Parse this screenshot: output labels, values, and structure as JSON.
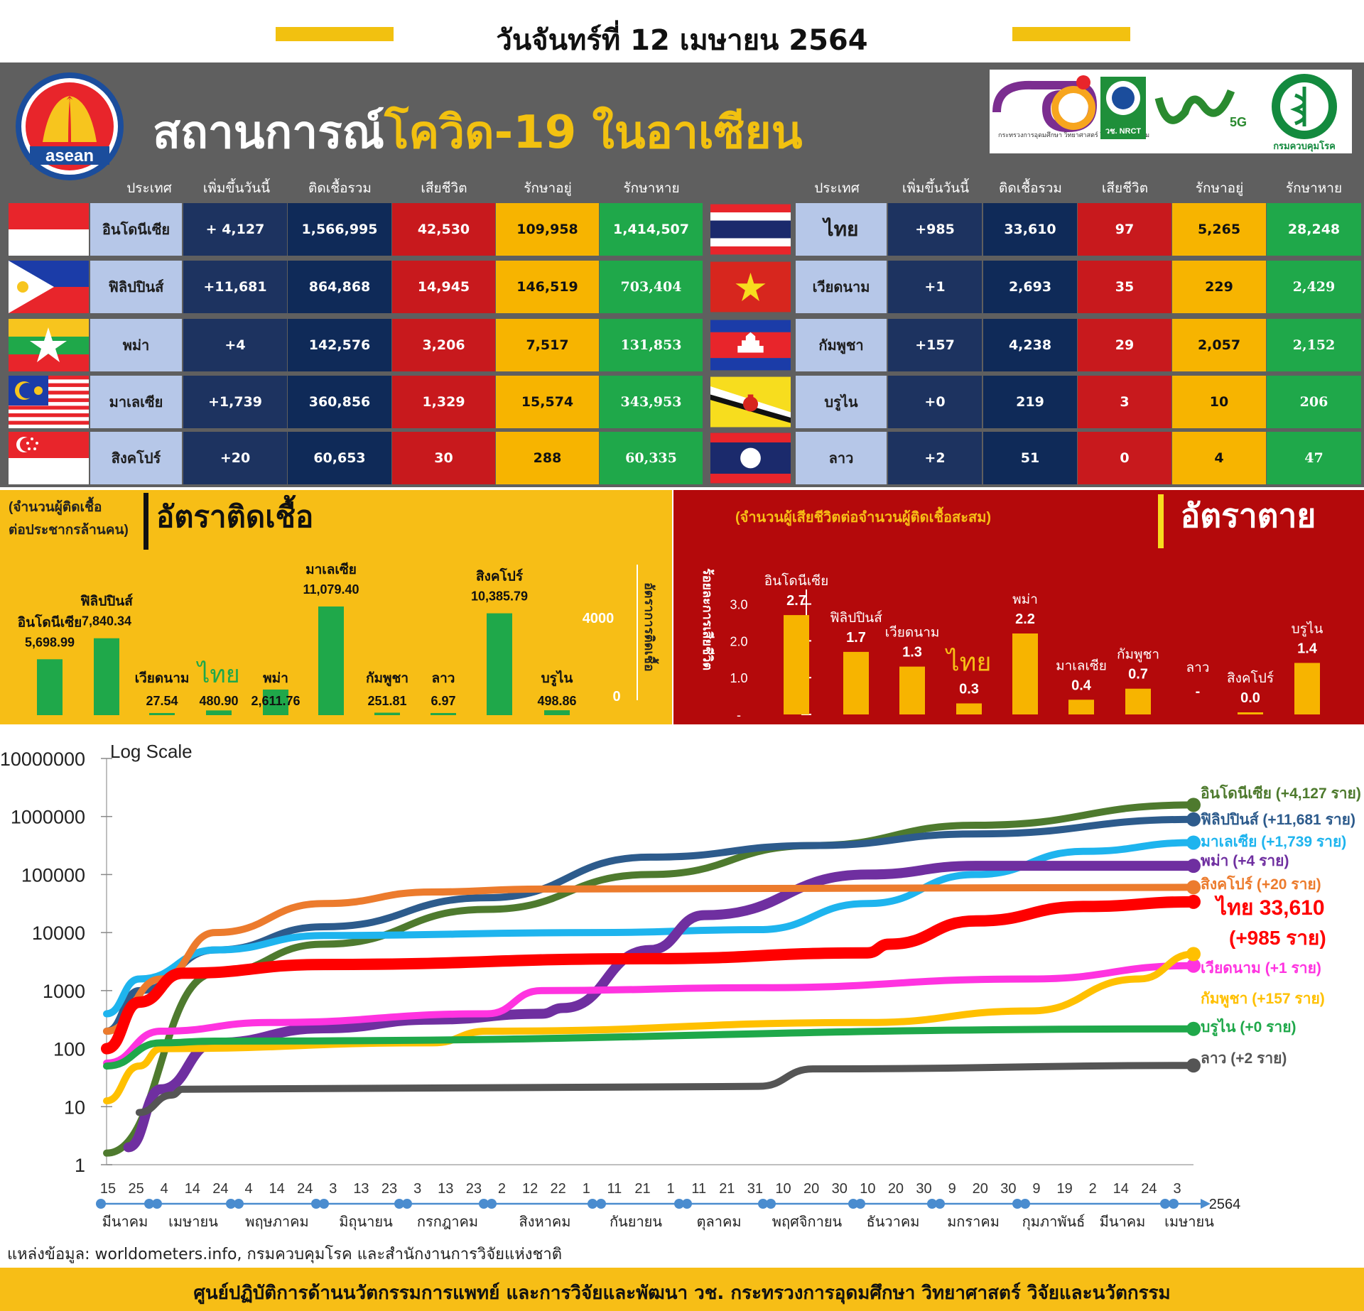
{
  "header": {
    "date": "วันจันทร์ที่ 12 เมษายน 2564",
    "title_white": "สถานการณ์",
    "title_yellow": "โควิด-19 ในอาเซียน",
    "asean_logo_text": "asean",
    "partner_logo_texts": [
      "กระทรวงการอุดมศึกษา วิทยาศาสตร์ วิจัยและนวัตกรรม",
      "วช. NRCT",
      "5G",
      "กรมควบคุมโรค"
    ]
  },
  "table": {
    "headers": [
      "ประเทศ",
      "เพิ่มขึ้นวันนี้",
      "ติดเชื้อรวม",
      "เสียชีวิต",
      "รักษาอยู่",
      "รักษาหาย"
    ],
    "left_rows": [
      {
        "country": "อินโดนีเซีย",
        "flag": "indonesia-flag",
        "increase": "+ 4,127",
        "total": "1,566,995",
        "deaths": "42,530",
        "active": "109,958",
        "recovered": "1,414,507"
      },
      {
        "country": "ฟิลิปปินส์",
        "flag": "philippines-flag",
        "increase": "+11,681",
        "total": "864,868",
        "deaths": "14,945",
        "active": "146,519",
        "recovered": "703,404"
      },
      {
        "country": "พม่า",
        "flag": "myanmar-flag",
        "increase": "+4",
        "total": "142,576",
        "deaths": "3,206",
        "active": "7,517",
        "recovered": "131,853"
      },
      {
        "country": "มาเลเซีย",
        "flag": "malaysia-flag",
        "increase": "+1,739",
        "total": "360,856",
        "deaths": "1,329",
        "active": "15,574",
        "recovered": "343,953"
      },
      {
        "country": "สิงคโปร์",
        "flag": "singapore-flag",
        "increase": "+20",
        "total": "60,653",
        "deaths": "30",
        "active": "288",
        "recovered": "60,335"
      }
    ],
    "right_rows": [
      {
        "country": "ไทย",
        "flag": "thailand-flag",
        "increase": "+985",
        "total": "33,610",
        "deaths": "97",
        "active": "5,265",
        "recovered": "28,248"
      },
      {
        "country": "เวียดนาม",
        "flag": "vietnam-flag",
        "increase": "+1",
        "total": "2,693",
        "deaths": "35",
        "active": "229",
        "recovered": "2,429"
      },
      {
        "country": "กัมพูชา",
        "flag": "cambodia-flag",
        "increase": "+157",
        "total": "4,238",
        "deaths": "29",
        "active": "2,057",
        "recovered": "2,152"
      },
      {
        "country": "บรูไน",
        "flag": "brunei-flag",
        "increase": "+0",
        "total": "219",
        "deaths": "3",
        "active": "10",
        "recovered": "206"
      },
      {
        "country": "ลาว",
        "flag": "laos-flag",
        "increase": "+2",
        "total": "51",
        "deaths": "0",
        "active": "4",
        "recovered": "47"
      }
    ]
  },
  "chart_data": [
    {
      "type": "bar",
      "title": "อัตราติดเชื้อ",
      "subtitle": "(จำนวนผู้ติดเชื้อ ต่อประชากรล้านคน)",
      "ylabel": "อัตราการติดเชื้อ",
      "yticks": [
        "4000",
        "0"
      ],
      "ylim": [
        0,
        12000
      ],
      "categories": [
        "อินโดนีเซีย",
        "ฟิลิปปินส์",
        "เวียดนาม",
        "ไทย",
        "พม่า",
        "มาเลเซีย",
        "กัมพูชา",
        "ลาว",
        "สิงคโปร์",
        "บรูไน"
      ],
      "values": [
        5698.99,
        7840.34,
        27.54,
        480.9,
        2611.76,
        11079.4,
        251.81,
        6.97,
        10385.79,
        498.86
      ],
      "labels": [
        "5,698.99",
        "7,840.34",
        "27.54",
        "480.90",
        "2,611.76",
        "11,079.40",
        "251.81",
        "6.97",
        "10,385.79",
        "498.86"
      ],
      "color": "#1fa84a"
    },
    {
      "type": "bar",
      "title": "อัตราตาย",
      "subtitle": "(จำนวนผู้เสียชีวิตต่อจำนวนผู้ติดเชื้อสะสม)",
      "ylabel": "ร้อยละการเสียชีวิต",
      "yticks": [
        "3.0",
        "2.0",
        "1.0",
        "-"
      ],
      "ylim": [
        0,
        3.3
      ],
      "categories": [
        "อินโดนีเซีย",
        "ฟิลิปปินส์",
        "เวียดนาม",
        "ไทย",
        "พม่า",
        "มาเลเซีย",
        "กัมพูชา",
        "ลาว",
        "สิงคโปร์",
        "บรูไน"
      ],
      "values": [
        2.7,
        1.7,
        1.3,
        0.3,
        2.2,
        0.4,
        0.7,
        null,
        0.0,
        1.4
      ],
      "labels": [
        "2.7",
        "1.7",
        "1.3",
        "0.3",
        "2.2",
        "0.4",
        "0.7",
        "-",
        "0.0",
        "1.4"
      ],
      "color": "#f7b400"
    },
    {
      "type": "line",
      "title": "Log Scale",
      "yscale": "log",
      "ylim": [
        1,
        10000000
      ],
      "yticks": [
        "10000000",
        "1000000",
        "100000",
        "10000",
        "1000",
        "100",
        "10",
        "1"
      ],
      "xticks": [
        "15",
        "25",
        "4",
        "14",
        "24",
        "4",
        "14",
        "24",
        "3",
        "13",
        "23",
        "3",
        "13",
        "23",
        "2",
        "12",
        "22",
        "1",
        "11",
        "21",
        "1",
        "11",
        "21",
        "31",
        "10",
        "20",
        "30",
        "10",
        "20",
        "30",
        "9",
        "20",
        "30",
        "9",
        "19",
        "2",
        "14",
        "24",
        "3"
      ],
      "months": [
        "มีนาคม",
        "เมษายน",
        "พฤษภาคม",
        "มิถุนายน",
        "กรกฎาคม",
        "สิงหาคม",
        "กันยายน",
        "ตุลาคม",
        "พฤศจิกายน",
        "ธันวาคม",
        "มกราคม",
        "กุมภาพันธ์",
        "มีนาคม",
        "เมษายน"
      ],
      "year_label": "2564",
      "series": [
        {
          "name": "อินโดนีเซีย",
          "legend": "อินโดนีเซีย (+4,127  ราย)",
          "color": "#4e7a2e",
          "points": [
            [
              0,
              0.2
            ],
            [
              0.1,
              3.3
            ],
            [
              0.2,
              3.8
            ],
            [
              0.35,
              4.4
            ],
            [
              0.5,
              5.0
            ],
            [
              0.65,
              5.5
            ],
            [
              0.8,
              5.85
            ],
            [
              1.0,
              6.2
            ]
          ]
        },
        {
          "name": "ฟิลิปปินส์",
          "legend": "ฟิลิปปินส์ (+11,681 ราย)",
          "color": "#2d5b8c",
          "points": [
            [
              0,
              2.3
            ],
            [
              0.03,
              3.0
            ],
            [
              0.1,
              3.7
            ],
            [
              0.2,
              4.1
            ],
            [
              0.35,
              4.6
            ],
            [
              0.5,
              5.3
            ],
            [
              0.65,
              5.5
            ],
            [
              0.8,
              5.7
            ],
            [
              1.0,
              5.95
            ]
          ]
        },
        {
          "name": "มาเลเซีย",
          "legend": "มาเลเซีย (+1,739 ราย)",
          "color": "#1eb4ee",
          "points": [
            [
              0,
              2.6
            ],
            [
              0.03,
              3.2
            ],
            [
              0.1,
              3.7
            ],
            [
              0.2,
              3.95
            ],
            [
              0.45,
              4.0
            ],
            [
              0.6,
              4.05
            ],
            [
              0.7,
              4.5
            ],
            [
              0.8,
              5.0
            ],
            [
              0.9,
              5.4
            ],
            [
              1.0,
              5.55
            ]
          ]
        },
        {
          "name": "พม่า",
          "legend": "พม่า (+4 ราย)",
          "color": "#6f2fa0",
          "points": [
            [
              0.02,
              0.3
            ],
            [
              0.05,
              1.3
            ],
            [
              0.1,
              2.1
            ],
            [
              0.2,
              2.35
            ],
            [
              0.3,
              2.5
            ],
            [
              0.4,
              2.6
            ],
            [
              0.42,
              2.7
            ],
            [
              0.5,
              3.7
            ],
            [
              0.55,
              4.3
            ],
            [
              0.7,
              5.0
            ],
            [
              0.8,
              5.15
            ],
            [
              1.0,
              5.15
            ]
          ]
        },
        {
          "name": "สิงคโปร์",
          "legend": "สิงคโปร์ (+20 ราย)",
          "color": "#ec7b2d",
          "points": [
            [
              0,
              2.3
            ],
            [
              0.05,
              3.2
            ],
            [
              0.1,
              4.0
            ],
            [
              0.2,
              4.5
            ],
            [
              0.3,
              4.7
            ],
            [
              0.4,
              4.75
            ],
            [
              1.0,
              4.78
            ]
          ]
        },
        {
          "name": "ไทย",
          "legend": "ไทย 33,610 (+985 ราย)",
          "color": "#ff0000",
          "points": [
            [
              0,
              2.0
            ],
            [
              0.03,
              2.8
            ],
            [
              0.07,
              3.3
            ],
            [
              0.2,
              3.45
            ],
            [
              0.5,
              3.55
            ],
            [
              0.7,
              3.65
            ],
            [
              0.72,
              3.8
            ],
            [
              0.8,
              4.2
            ],
            [
              0.9,
              4.45
            ],
            [
              1.0,
              4.53
            ]
          ]
        },
        {
          "name": "เวียดนาม",
          "legend": "เวียดนาม (+1 ราย)",
          "color": "#ff33e0",
          "points": [
            [
              0,
              1.75
            ],
            [
              0.05,
              2.3
            ],
            [
              0.15,
              2.45
            ],
            [
              0.35,
              2.6
            ],
            [
              0.4,
              3.0
            ],
            [
              0.6,
              3.05
            ],
            [
              0.85,
              3.2
            ],
            [
              1.0,
              3.43
            ]
          ]
        },
        {
          "name": "กัมพูชา",
          "legend": "กัมพูชา (+157 ราย)",
          "color": "#ffc000",
          "points": [
            [
              0,
              1.1
            ],
            [
              0.03,
              1.7
            ],
            [
              0.05,
              2.0
            ],
            [
              0.3,
              2.1
            ],
            [
              0.35,
              2.3
            ],
            [
              0.7,
              2.45
            ],
            [
              0.85,
              2.65
            ],
            [
              0.95,
              3.2
            ],
            [
              1.0,
              3.63
            ]
          ]
        },
        {
          "name": "บรูไน",
          "legend": "บรูไน (+0 ราย)",
          "color": "#1fa84a",
          "points": [
            [
              0,
              1.7
            ],
            [
              0.05,
              2.1
            ],
            [
              0.1,
              2.13
            ],
            [
              1.0,
              2.34
            ]
          ]
        },
        {
          "name": "ลาว",
          "legend": "ลาว (+2 ราย)",
          "color": "#555555",
          "points": [
            [
              0.03,
              0.9
            ],
            [
              0.06,
              1.2
            ],
            [
              0.07,
              1.3
            ],
            [
              0.6,
              1.35
            ],
            [
              0.65,
              1.65
            ],
            [
              1.0,
              1.71
            ]
          ]
        }
      ]
    }
  ],
  "source": "แหล่งข้อมูล: worldometers.info, กรมควบคุมโรค และสำนักงานการวิจัยแห่งชาติ",
  "footer": "ศูนย์ปฏิบัติการด้านนวัตกรรมการแพทย์ และการวิจัยและพัฒนา  วช.   กระทรวงการอุดมศึกษา วิทยาศาสตร์ วิจัยและนวัตกรรม"
}
